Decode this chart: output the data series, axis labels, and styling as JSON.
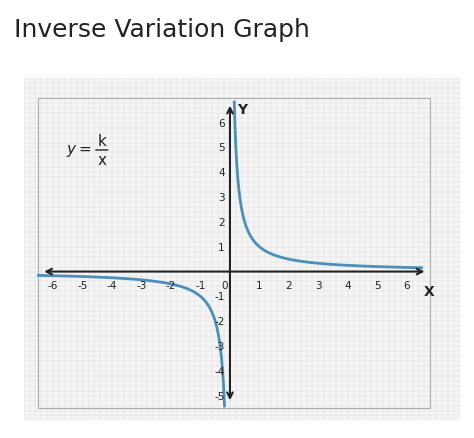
{
  "title": "Inverse Variation Graph",
  "title_fontsize": 18,
  "title_color": "#222222",
  "background_color": "#ffffff",
  "plot_bg_color": "#f5f5f5",
  "grid_color": "#cccccc",
  "axis_color": "#222222",
  "curve_color": "#4a90b8",
  "curve_lw": 2.0,
  "xlim": [
    -6.5,
    6.8
  ],
  "ylim": [
    -5.5,
    7.0
  ],
  "xticks": [
    -6,
    -5,
    -4,
    -3,
    -2,
    -1,
    0,
    1,
    2,
    3,
    4,
    5,
    6
  ],
  "yticks": [
    -5,
    -4,
    -3,
    -2,
    -1,
    0,
    1,
    2,
    3,
    4,
    5,
    6
  ],
  "xlabel": "X",
  "ylabel": "Y",
  "formula_text": "y = ",
  "k_text": "k",
  "x_text": "x",
  "formula_x": -5.0,
  "formula_y": 4.8,
  "k_value": 1.0,
  "minor_grid_subdivisions": 5
}
